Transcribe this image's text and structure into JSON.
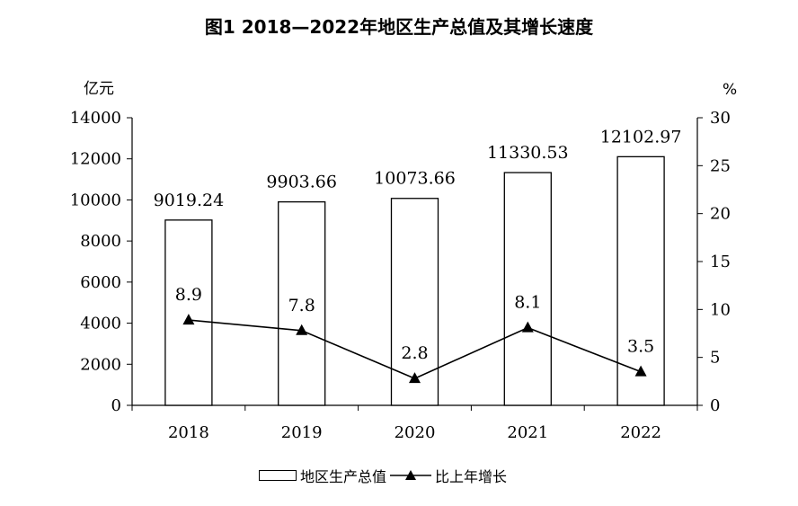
{
  "title": "图1  2018—2022年地区生产总值及其增长速度",
  "chart_data": {
    "type": "bar",
    "title": "图1  2018—2022年地区生产总值及其增长速度",
    "categories": [
      "2018",
      "2019",
      "2020",
      "2021",
      "2022"
    ],
    "left_axis": {
      "unit": "亿元",
      "ylim": [
        0,
        14000
      ],
      "ticks": [
        0,
        2000,
        4000,
        6000,
        8000,
        10000,
        12000,
        14000
      ]
    },
    "right_axis": {
      "unit": "%",
      "ylim": [
        0,
        30
      ],
      "ticks": [
        0,
        5,
        10,
        15,
        20,
        25,
        30
      ]
    },
    "series": [
      {
        "name": "地区生产总值",
        "type": "bar",
        "axis": "left",
        "values": [
          9019.24,
          9903.66,
          10073.66,
          11330.53,
          12102.97
        ],
        "labels": [
          "9019.24",
          "9903.66",
          "10073.66",
          "11330.53",
          "12102.97"
        ]
      },
      {
        "name": "比上年增长",
        "type": "line",
        "axis": "right",
        "marker": "triangle",
        "values": [
          8.9,
          7.8,
          2.8,
          8.1,
          3.5
        ],
        "labels": [
          "8.9",
          "7.8",
          "2.8",
          "8.1",
          "3.5"
        ]
      }
    ],
    "grid": false,
    "legend_position": "bottom-center"
  }
}
